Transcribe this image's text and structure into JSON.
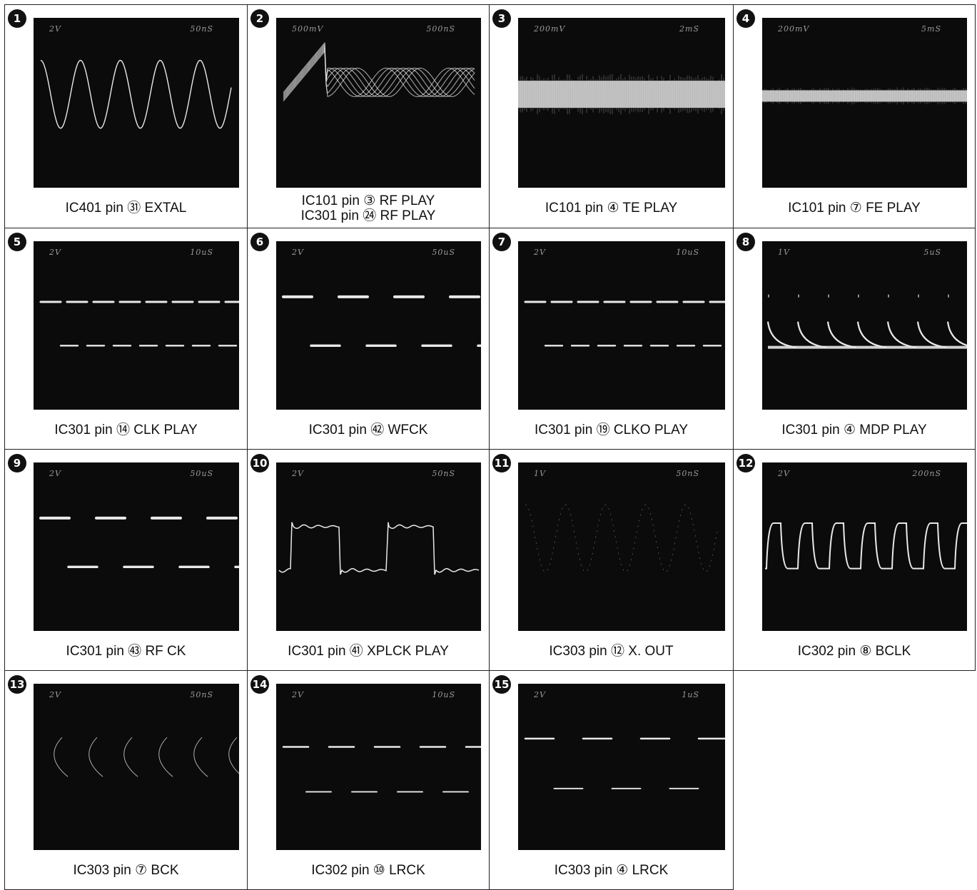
{
  "panels": [
    {
      "number": "1",
      "volts": "2V",
      "time": "50nS",
      "caption": [
        "IC401 pin ㉛ EXTAL"
      ],
      "wave": "sine"
    },
    {
      "number": "2",
      "volts": "500mV",
      "time": "500nS",
      "caption": [
        "IC101 pin ③ RF PLAY",
        "IC301 pin ㉔ RF PLAY"
      ],
      "wave": "eye"
    },
    {
      "number": "3",
      "volts": "200mV",
      "time": "2mS",
      "caption": [
        "IC101 pin ④ TE PLAY"
      ],
      "wave": "noise"
    },
    {
      "number": "4",
      "volts": "200mV",
      "time": "5mS",
      "caption": [
        "IC101 pin ⑦ FE PLAY"
      ],
      "wave": "noise-thin"
    },
    {
      "number": "5",
      "volts": "2V",
      "time": "10uS",
      "caption": [
        "IC301 pin ⑭ CLK PLAY"
      ],
      "wave": "dash-fast"
    },
    {
      "number": "6",
      "volts": "2V",
      "time": "50uS",
      "caption": [
        "IC301 pin ㊷ WFCK"
      ],
      "wave": "dash-slow"
    },
    {
      "number": "7",
      "volts": "2V",
      "time": "10uS",
      "caption": [
        "IC301 pin ⑲ CLKO PLAY"
      ],
      "wave": "dash-fast"
    },
    {
      "number": "8",
      "volts": "1V",
      "time": "5uS",
      "caption": [
        "IC301 pin ④ MDP PLAY"
      ],
      "wave": "spike"
    },
    {
      "number": "9",
      "volts": "2V",
      "time": "50uS",
      "caption": [
        "IC301 pin ㊸ RF CK"
      ],
      "wave": "dash-slow"
    },
    {
      "number": "10",
      "volts": "2V",
      "time": "50nS",
      "caption": [
        "IC301 pin ㊶ XPLCK PLAY"
      ],
      "wave": "ringing"
    },
    {
      "number": "11",
      "volts": "1V",
      "time": "50nS",
      "caption": [
        "IC303 pin ⑫ X. OUT"
      ],
      "wave": "sine-dots"
    },
    {
      "number": "12",
      "volts": "2V",
      "time": "200nS",
      "caption": [
        "IC302 pin ⑧ BCLK"
      ],
      "wave": "square-round"
    },
    {
      "number": "13",
      "volts": "2V",
      "time": "50nS",
      "caption": [
        "IC303 pin ⑦ BCK"
      ],
      "wave": "arcs"
    },
    {
      "number": "14",
      "volts": "2V",
      "time": "10uS",
      "caption": [
        "IC302 pin ⑩ LRCK"
      ],
      "wave": "dash-slow2"
    },
    {
      "number": "15",
      "volts": "2V",
      "time": "1uS",
      "caption": [
        "IC303 pin ④ LRCK"
      ],
      "wave": "dash-slow3"
    }
  ]
}
